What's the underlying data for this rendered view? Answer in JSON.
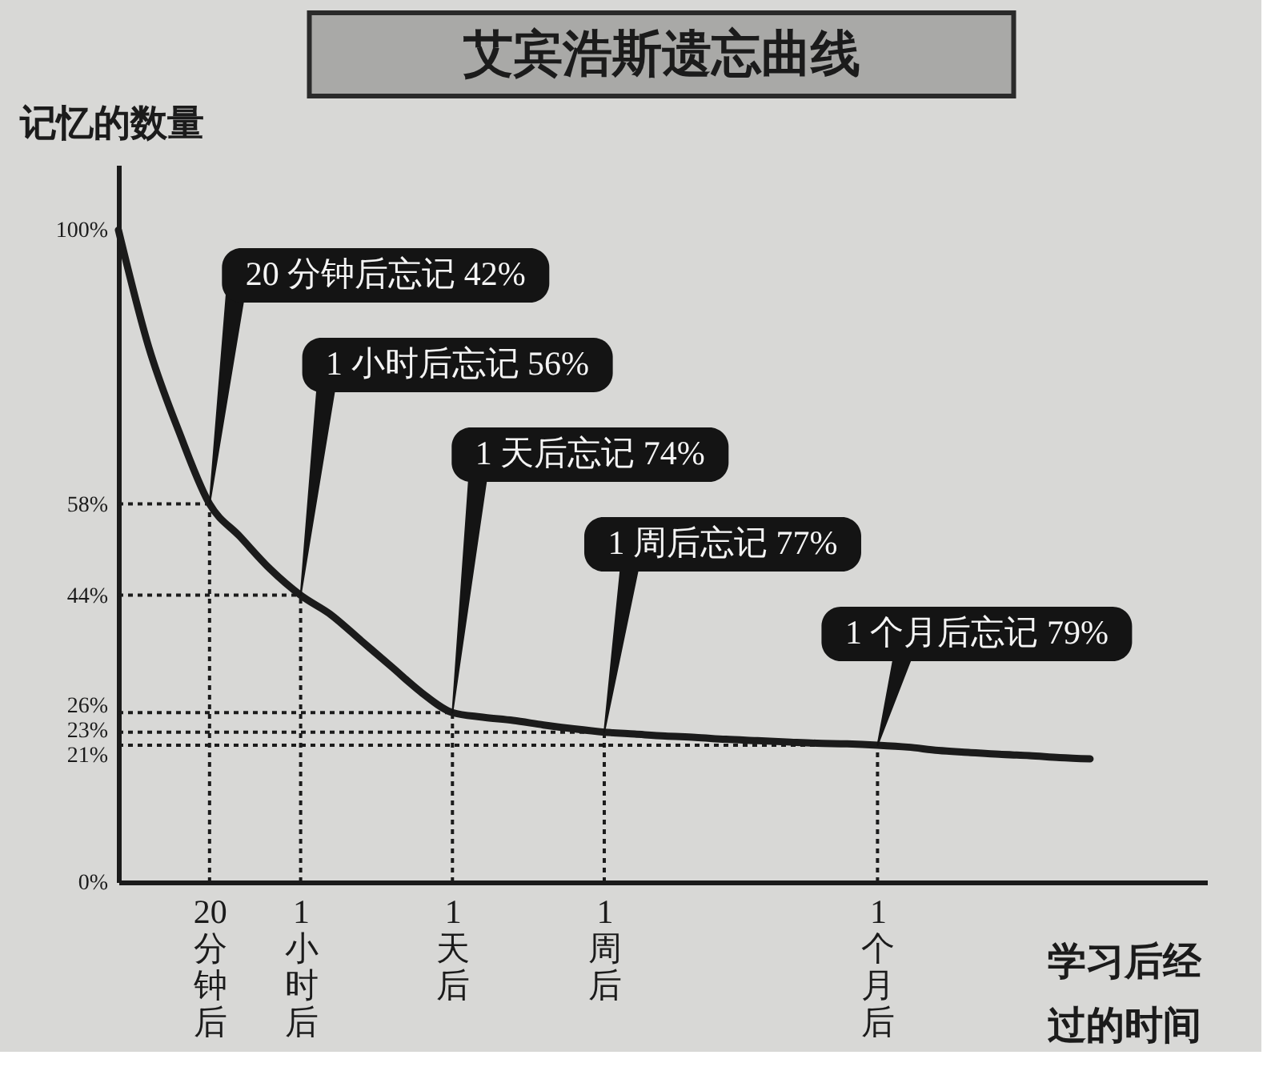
{
  "chart_data": {
    "type": "line",
    "title": "艾宾浩斯遗忘曲线",
    "ylabel": "记忆的数量",
    "xlabel": "学习后经过的时间",
    "categories": [
      null,
      null,
      null,
      "20分钟后",
      null,
      null,
      "1小时后",
      null,
      null,
      null,
      null,
      "1天后",
      null,
      null,
      null,
      null,
      "1周后",
      null,
      null,
      null,
      null,
      null,
      null,
      null,
      null,
      "1个月后",
      null,
      null,
      null,
      null,
      null,
      null,
      null
    ],
    "values": [
      100,
      82,
      69,
      58,
      53,
      48,
      44,
      41,
      37,
      33,
      29,
      26,
      25.3,
      24.8,
      24.1,
      23.5,
      23,
      22.7,
      22.4,
      22.2,
      21.9,
      21.7,
      21.5,
      21.3,
      21.2,
      21,
      20.7,
      20.2,
      19.9,
      19.6,
      19.4,
      19.1,
      18.9
    ],
    "color": "#1b1b1b",
    "line_style": "solid",
    "ylim": [
      0,
      110
    ],
    "yticks": [
      {
        "value": 0,
        "label": "0%"
      },
      {
        "value": 21,
        "label": "21%"
      },
      {
        "value": 23,
        "label": "23%"
      },
      {
        "value": 26,
        "label": "26%"
      },
      {
        "value": 44,
        "label": "44%"
      },
      {
        "value": 58,
        "label": "58%"
      },
      {
        "value": 100,
        "label": "100%"
      }
    ],
    "ref_lines": [
      {
        "axis": "y",
        "value": 58,
        "line_style": "dotted",
        "color": "#1b1b1b"
      },
      {
        "axis": "y",
        "value": 44,
        "line_style": "dotted",
        "color": "#1b1b1b"
      },
      {
        "axis": "y",
        "value": 26,
        "line_style": "dotted",
        "color": "#1b1b1b"
      },
      {
        "axis": "y",
        "value": 23,
        "line_style": "dotted",
        "color": "#1b1b1b"
      },
      {
        "axis": "y",
        "value": 21,
        "line_style": "dotted",
        "color": "#1b1b1b"
      },
      {
        "axis": "x",
        "value": "20分钟后",
        "line_style": "dotted",
        "color": "#1b1b1b"
      },
      {
        "axis": "x",
        "value": "1小时后",
        "line_style": "dotted",
        "color": "#1b1b1b"
      },
      {
        "axis": "x",
        "value": "1天后",
        "line_style": "dotted",
        "color": "#1b1b1b"
      },
      {
        "axis": "x",
        "value": "1周后",
        "line_style": "dotted",
        "color": "#1b1b1b"
      },
      {
        "axis": "x",
        "value": "1个月后",
        "line_style": "dotted",
        "color": "#1b1b1b"
      }
    ],
    "annotations": [
      {
        "text": "20 分钟后忘记 42%",
        "x": "20分钟后",
        "y": 58
      },
      {
        "text": "1 小时后忘记 56%",
        "x": "1小时后",
        "y": 44
      },
      {
        "text": "1 天后忘记 74%",
        "x": "1天后",
        "y": 26
      },
      {
        "text": "1 周后忘记 77%",
        "x": "1周后",
        "y": 23
      },
      {
        "text": "1 个月后忘记 79%",
        "x": "1个月后",
        "y": 21
      }
    ]
  }
}
